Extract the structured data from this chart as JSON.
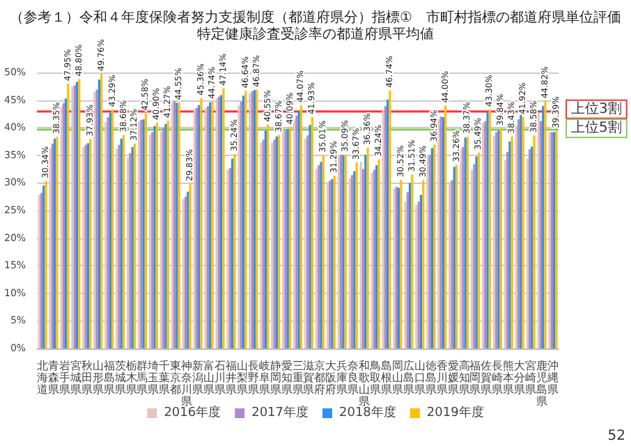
{
  "chart_data": {
    "type": "bar",
    "title": "（参考１）令和４年度保険者努力支援制度（都道府県分）指標①　市町村指標の都道府県単位評価",
    "subtitle": "特定健康診査受診率の都道府県平均値",
    "categories": [
      "北海道",
      "青森県",
      "岩手県",
      "宮城県",
      "秋田県",
      "山形県",
      "福島県",
      "茨城県",
      "栃木県",
      "群馬県",
      "埼玉県",
      "千葉県",
      "東京都",
      "神奈川県",
      "新潟県",
      "富山県",
      "石川県",
      "福井県",
      "山梨県",
      "長野県",
      "岐阜県",
      "静岡県",
      "愛知県",
      "三重県",
      "滋賀県",
      "京都府",
      "大阪府",
      "兵庫県",
      "奈良県",
      "和歌山県",
      "鳥取県",
      "島根県",
      "岡山県",
      "広島県",
      "山口県",
      "徳島県",
      "香川県",
      "愛媛県",
      "高知県",
      "福岡県",
      "佐賀県",
      "長崎県",
      "熊本県",
      "大分県",
      "宮崎県",
      "鹿児島県",
      "沖縄県"
    ],
    "series": [
      {
        "name": "2016年度",
        "color": "#e6c6bb",
        "values": [
          27.8,
          36.3,
          43.8,
          47.4,
          36.5,
          46.5,
          41.0,
          36.2,
          34.6,
          41.2,
          38.7,
          39.3,
          44.6,
          27.1,
          43.4,
          43.6,
          45.3,
          32.4,
          44.0,
          46.2,
          37.3,
          37.3,
          39.3,
          41.5,
          38.0,
          32.5,
          30.1,
          34.8,
          30.9,
          33.8,
          31.8,
          43.3,
          29.0,
          26.6,
          26.0,
          34.8,
          41.5,
          30.2,
          36.1,
          32.4,
          40.9,
          38.5,
          34.1,
          40.4,
          34.4,
          42.7,
          39.2
        ]
      },
      {
        "name": "2017年度",
        "color": "#b08ac8",
        "values": [
          28.2,
          37.1,
          44.4,
          47.7,
          36.9,
          46.9,
          41.9,
          36.9,
          35.4,
          41.4,
          39.2,
          40.0,
          44.8,
          27.5,
          43.6,
          43.9,
          45.6,
          32.7,
          44.7,
          46.6,
          37.8,
          37.8,
          39.5,
          42.2,
          38.6,
          33.2,
          30.4,
          35.1,
          31.4,
          32.5,
          32.4,
          43.9,
          29.3,
          28.3,
          26.6,
          35.0,
          42.0,
          30.5,
          36.5,
          33.4,
          41.2,
          39.2,
          35.6,
          41.5,
          36.1,
          41.2,
          39.2
        ]
      },
      {
        "name": "2018年度",
        "color": "#2f8fef",
        "values": [
          29.5,
          38.0,
          45.3,
          48.3,
          37.2,
          48.7,
          42.7,
          38.0,
          36.5,
          41.5,
          40.3,
          40.7,
          44.5,
          28.4,
          44.1,
          44.6,
          45.9,
          34.4,
          45.8,
          46.8,
          39.5,
          38.4,
          39.7,
          43.1,
          40.5,
          33.8,
          30.7,
          35.0,
          32.1,
          35.1,
          33.2,
          45.1,
          29.1,
          30.0,
          27.8,
          36.3,
          41.9,
          32.9,
          38.2,
          34.8,
          42.9,
          39.5,
          37.5,
          42.3,
          36.6,
          43.9,
          39.2
        ]
      },
      {
        "name": "2019年度",
        "color": "#ffc000",
        "values": [
          30.34,
          38.35,
          47.95,
          48.8,
          37.93,
          49.76,
          43.29,
          38.68,
          37.12,
          42.58,
          40.9,
          41.27,
          44.55,
          29.83,
          45.36,
          44.74,
          47.14,
          35.24,
          46.64,
          46.87,
          40.55,
          38.67,
          40.09,
          44.07,
          41.93,
          35.01,
          31.29,
          35.09,
          33.67,
          36.36,
          34.24,
          46.74,
          30.52,
          31.51,
          30.49,
          36.94,
          44.0,
          33.26,
          38.37,
          35.49,
          43.3,
          39.84,
          38.43,
          41.92,
          38.58,
          44.82,
          39.39
        ],
        "value_labels": [
          "30.34%",
          "38.35%",
          "47.95%",
          "48.80%",
          "37.93%",
          "49.76%",
          "43.29%",
          "38.68%",
          "37.12%",
          "42.58%",
          "40.90%",
          "41.27%",
          "44.55%",
          "29.83%",
          "45.36%",
          "44.74%",
          "47.14%",
          "35.24%",
          "46.64%",
          "46.87%",
          "40.55%",
          "38.67%",
          "40.09%",
          "44.07%",
          "41.93%",
          "35.01%",
          "31.29%",
          "35.09%",
          "33.67%",
          "36.36%",
          "34.24%",
          "46.74%",
          "30.52%",
          "31.51%",
          "30.49%",
          "36.94%",
          "44.00%",
          "33.26%",
          "38.37%",
          "35.49%",
          "43.30%",
          "39.84%",
          "38.43%",
          "41.92%",
          "38.58%",
          "44.82%",
          "39.39%"
        ]
      }
    ],
    "ylim": [
      0,
      50
    ],
    "yticks": [
      {
        "value": 0,
        "label": "0%"
      },
      {
        "value": 5,
        "label": "5%"
      },
      {
        "value": 10,
        "label": "10%"
      },
      {
        "value": 15,
        "label": "15%"
      },
      {
        "value": 20,
        "label": "20%"
      },
      {
        "value": 25,
        "label": "25%"
      },
      {
        "value": 30,
        "label": "30%"
      },
      {
        "value": 35,
        "label": "35%"
      },
      {
        "value": 40,
        "label": "40%"
      },
      {
        "value": 45,
        "label": "45%"
      },
      {
        "value": 50,
        "label": "50%"
      }
    ],
    "ref_lines": [
      {
        "axis": "y",
        "value": 43.1,
        "label": "上位3割",
        "color": "#ff3030"
      },
      {
        "axis": "y",
        "value": 39.6,
        "label": "上位5割",
        "color": "#8cc860"
      }
    ],
    "grid": "y",
    "legend": "bottom",
    "annotations": [
      "52"
    ]
  }
}
